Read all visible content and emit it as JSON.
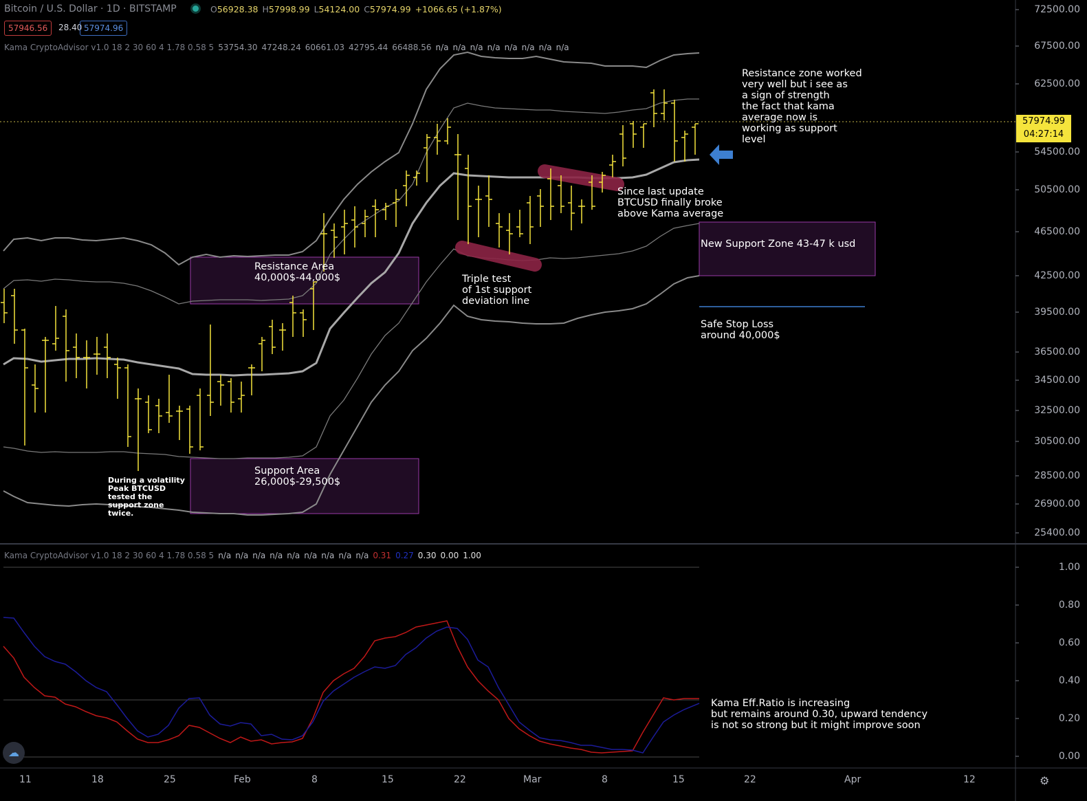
{
  "header": {
    "title": "Bitcoin / U.S. Dollar · 1D · BITSTAMP",
    "ohlc": [
      {
        "label": "O",
        "value": "56928.38"
      },
      {
        "label": "H",
        "value": "57998.99"
      },
      {
        "label": "L",
        "value": "54124.00"
      },
      {
        "label": "C",
        "value": "57974.99"
      },
      {
        "label": "",
        "value": "+1066.65 (+1.87%)"
      }
    ],
    "bid": "57946.56",
    "spread": "28.40",
    "ask": "57974.96"
  },
  "indicator_main": {
    "name": "Kama CryptoAdvisor v1.0 18 2 30 60 4 1.78 0.58 5",
    "values": [
      "53754.30",
      "47248.24",
      "60661.03",
      "42795.44",
      "66488.56"
    ],
    "na": [
      "n/a",
      "n/a",
      "n/a",
      "n/a",
      "n/a",
      "n/a",
      "n/a",
      "n/a"
    ]
  },
  "indicator_sub": {
    "name": "Kama CryptoAdvisor v1.0 18 2 30 60 4 1.78 0.58 5",
    "na": [
      "n/a",
      "n/a",
      "n/a",
      "n/a",
      "n/a",
      "n/a",
      "n/a",
      "n/a",
      "n/a"
    ],
    "red_value": "0.31",
    "blue_value": "0.27",
    "extra_values": [
      "0.30",
      "0.00",
      "1.00"
    ]
  },
  "price_axis": [
    "72500.00",
    "67500.00",
    "62500.00",
    "54500.00",
    "50500.00",
    "46500.00",
    "42500.00",
    "39500.00",
    "36500.00",
    "34500.00",
    "32500.00",
    "30500.00",
    "28500.00",
    "26900.00",
    "25400.00"
  ],
  "last_price": {
    "price": "57974.99",
    "countdown": "04:27:14"
  },
  "osc_axis": [
    "1.00",
    "0.80",
    "0.60",
    "0.40",
    "0.20",
    "0.00"
  ],
  "time_axis": [
    "11",
    "18",
    "25",
    "Feb",
    "8",
    "15",
    "22",
    "Mar",
    "8",
    "15",
    "22",
    "Apr",
    "12"
  ],
  "annotations": {
    "resistance_area": "Resistance Area\n40,000$-44,000$",
    "support_area": "Support Area\n26,000$-29,500$",
    "volatility_note": "During a volatility\nPeak BTCUSD\ntested the\nsupport zone\ntwice.",
    "triple_test": "Triple test\nof 1st support\ndeviation line",
    "since_update": "Since last update\nBTCUSD finally broke\nabove Kama average",
    "resistance_worked": "Resistance zone worked\nvery well but i see as\na sign of strength\nthe fact that kama\naverage now is\nworking as support\nlevel",
    "new_support": "New Support Zone 43-47 k usd",
    "stop_loss": "Safe Stop Loss\naround 40,000$",
    "eff_ratio": "Kama Eff.Ratio is increasing\nbut remains around 0.30, upward tendency\nis not so strong but it might improve soon"
  },
  "chart_data": {
    "type": "line",
    "title": "Bitcoin / U.S. Dollar · 1D · BITSTAMP",
    "colors": {
      "bars": "#f5e43c",
      "bands": "#9a9a9a",
      "kama": "#b0b0b0",
      "zone_fill": "#220d26",
      "zone_border": "#a040b0",
      "highlight": "#8c2445",
      "arrow": "#3d7fd0",
      "eff_red": "#c01818",
      "eff_blue": "#1c1c9a"
    },
    "ylim_price": [
      25000,
      73500
    ],
    "ylim_osc": [
      0,
      1
    ]
  }
}
